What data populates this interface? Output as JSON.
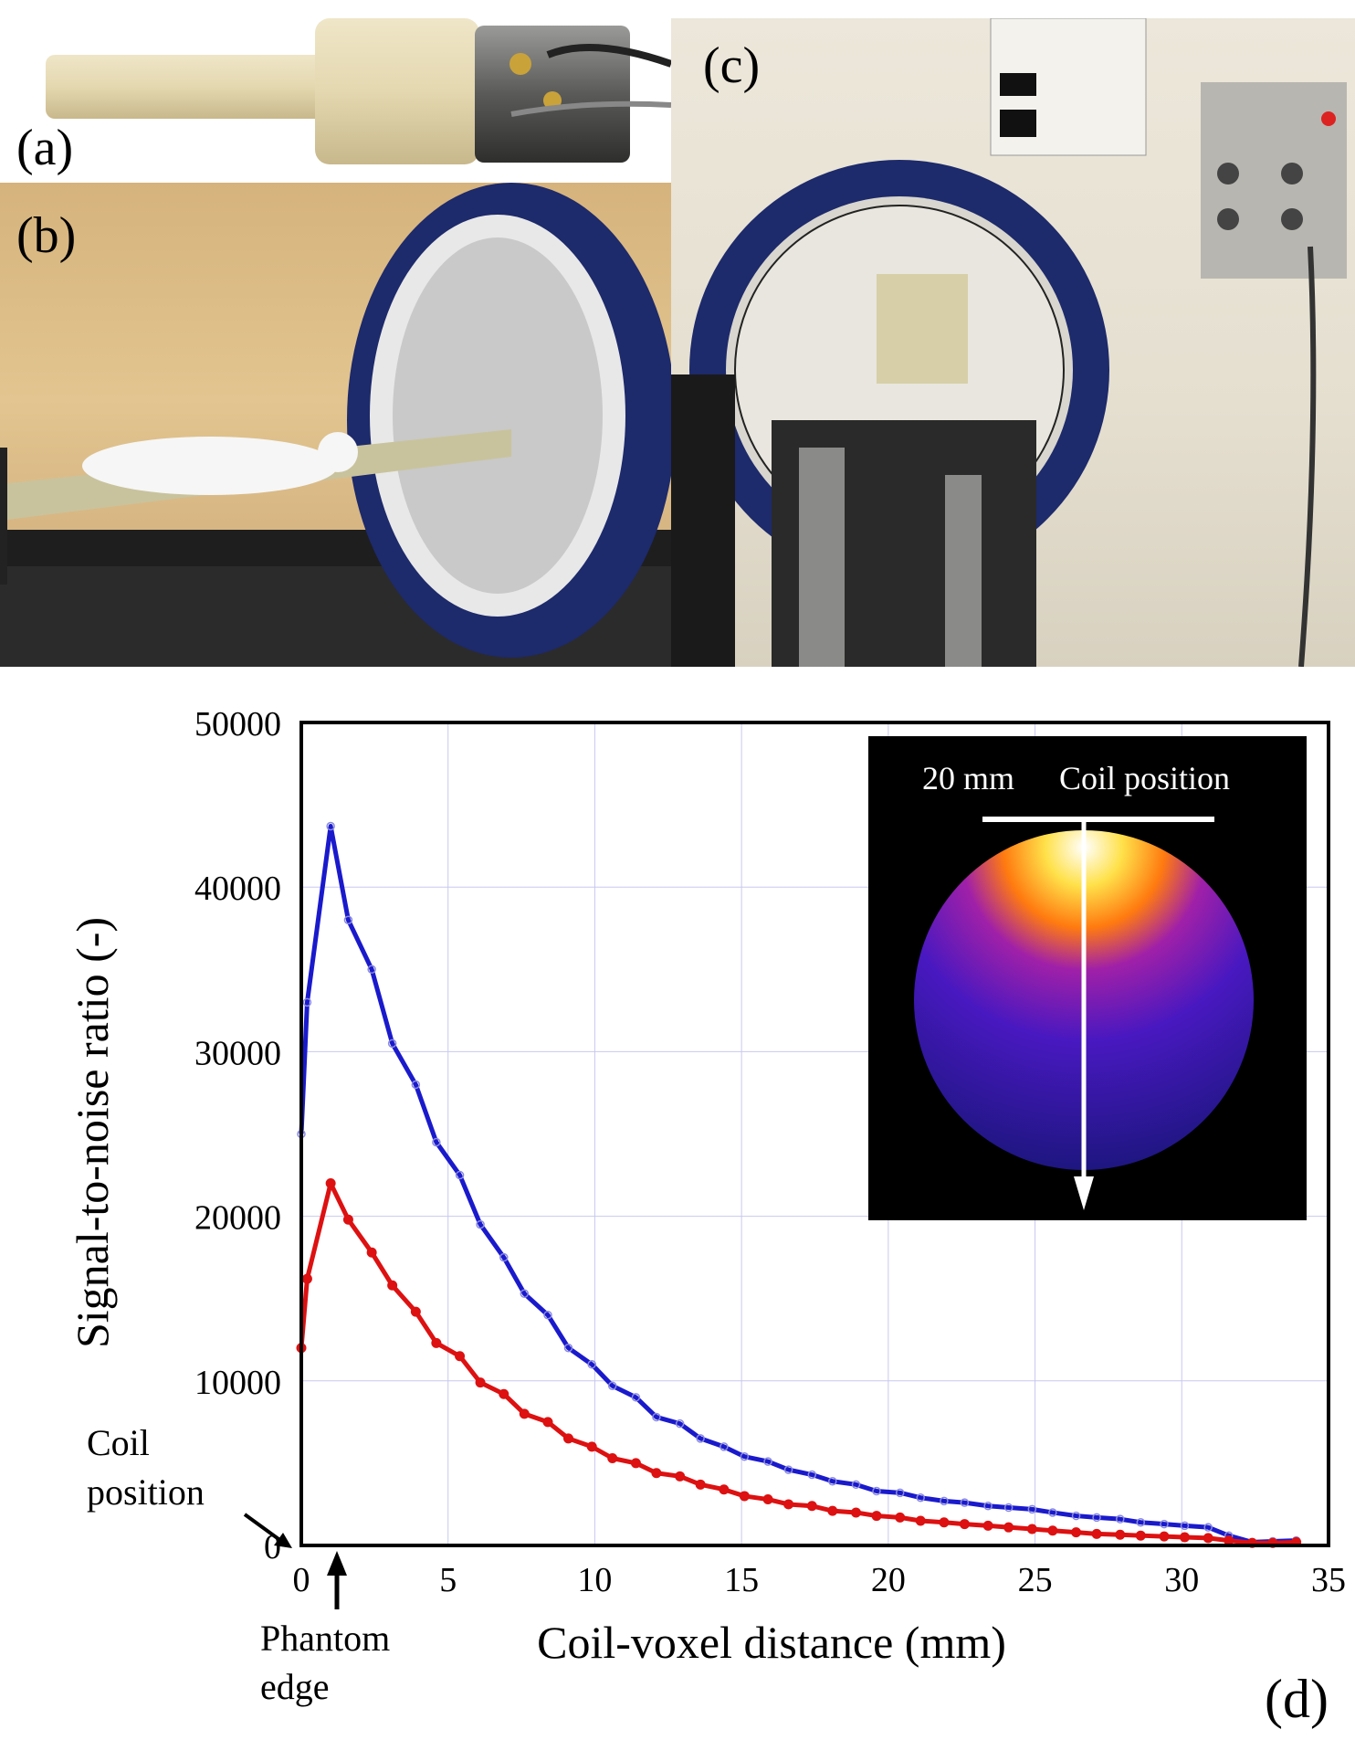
{
  "panels": {
    "a": {
      "label": "(a)"
    },
    "b": {
      "label": "(b)"
    },
    "c": {
      "label": "(c)"
    },
    "d": {
      "label": "(d)"
    }
  },
  "chart_data": {
    "type": "line",
    "xlabel": "Coil-voxel distance (mm)",
    "ylabel": "Signal-to-noise ratio (-)",
    "xlim": [
      0,
      35
    ],
    "ylim": [
      0,
      50000
    ],
    "xticks": [
      0,
      5,
      10,
      15,
      20,
      25,
      30,
      35
    ],
    "yticks": [
      0,
      10000,
      20000,
      30000,
      40000,
      50000
    ],
    "xtick_labels": [
      "0",
      "5",
      "10",
      "15",
      "20",
      "25",
      "30",
      "35"
    ],
    "ytick_labels": [
      "0",
      "10000",
      "20000",
      "30000",
      "40000",
      "50000"
    ],
    "grid": true,
    "series": [
      {
        "color": "#1a1acc",
        "x": [
          0,
          0.2,
          1,
          1.6,
          2.4,
          3.1,
          3.9,
          4.6,
          5.4,
          6.1,
          6.9,
          7.6,
          8.4,
          9.1,
          9.9,
          10.6,
          11.4,
          12.1,
          12.9,
          13.6,
          14.4,
          15.1,
          15.9,
          16.6,
          17.4,
          18.1,
          18.9,
          19.6,
          20.4,
          21.1,
          21.9,
          22.6,
          23.4,
          24.1,
          24.9,
          25.6,
          26.4,
          27.1,
          27.9,
          28.6,
          29.4,
          30.1,
          30.9,
          31.6,
          32.4,
          33.1,
          33.9
        ],
        "y": [
          25000,
          33000,
          43700,
          38000,
          35000,
          30500,
          28000,
          24500,
          22500,
          19500,
          17500,
          15300,
          14000,
          12000,
          11000,
          9700,
          9000,
          7800,
          7400,
          6500,
          6000,
          5400,
          5100,
          4600,
          4300,
          3900,
          3700,
          3300,
          3200,
          2900,
          2700,
          2600,
          2400,
          2300,
          2200,
          2000,
          1800,
          1700,
          1600,
          1400,
          1300,
          1200,
          1100,
          600,
          200,
          250,
          300
        ]
      },
      {
        "color": "#dd1111",
        "x": [
          0,
          0.2,
          1,
          1.6,
          2.4,
          3.1,
          3.9,
          4.6,
          5.4,
          6.1,
          6.9,
          7.6,
          8.4,
          9.1,
          9.9,
          10.6,
          11.4,
          12.1,
          12.9,
          13.6,
          14.4,
          15.1,
          15.9,
          16.6,
          17.4,
          18.1,
          18.9,
          19.6,
          20.4,
          21.1,
          21.9,
          22.6,
          23.4,
          24.1,
          24.9,
          25.6,
          26.4,
          27.1,
          27.9,
          28.6,
          29.4,
          30.1,
          30.9,
          31.6,
          32.4,
          33.1,
          33.9
        ],
        "y": [
          12000,
          16200,
          22000,
          19800,
          17800,
          15800,
          14200,
          12300,
          11500,
          9900,
          9200,
          8000,
          7500,
          6500,
          6000,
          5300,
          5000,
          4400,
          4200,
          3700,
          3400,
          3000,
          2800,
          2500,
          2400,
          2100,
          2000,
          1800,
          1700,
          1500,
          1400,
          1300,
          1200,
          1100,
          1000,
          900,
          800,
          700,
          650,
          600,
          550,
          500,
          450,
          300,
          150,
          150,
          200
        ]
      }
    ],
    "annotations": {
      "coil_position_line1": "Coil",
      "coil_position_line2": "position",
      "phantom_edge_line1": "Phantom",
      "phantom_edge_line2": "edge"
    },
    "inset": {
      "scale_label": "20 mm",
      "coil_label": "Coil position"
    }
  }
}
